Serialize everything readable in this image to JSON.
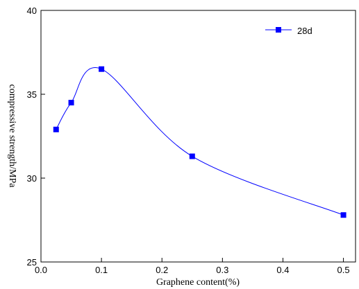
{
  "chart_data": {
    "type": "line",
    "x_label": "Graphene content(%)",
    "y_label": "compressive strength/MPa",
    "x": [
      0.025,
      0.05,
      0.1,
      0.25,
      0.5
    ],
    "series": [
      {
        "name": "28d",
        "color": "#0000ff",
        "values": [
          32.9,
          34.5,
          36.5,
          31.3,
          27.8
        ]
      }
    ],
    "xlim": [
      0,
      0.52
    ],
    "xticks": [
      {
        "value": 0,
        "label": "0.0"
      },
      0.1,
      0.2,
      0.3,
      0.4,
      0.5
    ],
    "ylim": [
      25,
      40
    ],
    "yticks": [
      25,
      30,
      35,
      40
    ],
    "legend": "top-right",
    "grid": false
  }
}
